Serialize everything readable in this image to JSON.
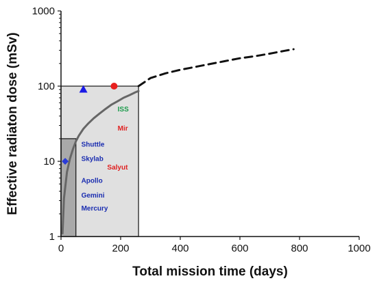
{
  "chart_data": {
    "type": "line",
    "title": "",
    "xlabel": "Total mission time (days)",
    "ylabel": "Effective radiaton dose (mSv)",
    "xlim": [
      0,
      1000
    ],
    "ylim": [
      1,
      1000
    ],
    "y_scale": "log",
    "x_ticks": [
      0,
      200,
      400,
      600,
      800,
      1000
    ],
    "x_tick_labels": [
      "0",
      "200",
      "400",
      "600",
      "800",
      "1000"
    ],
    "y_ticks": [
      1,
      10,
      100,
      1000
    ],
    "y_tick_labels": [
      "1",
      "10",
      "100",
      "1000"
    ],
    "grid": false,
    "legend": "none",
    "regions": [
      {
        "x": [
          0,
          260
        ],
        "y": [
          1,
          100
        ],
        "fill": "#e0e0e0"
      },
      {
        "x": [
          0,
          50
        ],
        "y": [
          1,
          20
        ],
        "fill": "#a9a9a9"
      }
    ],
    "series": [
      {
        "style": "solid",
        "color": "#666666",
        "x": [
          5,
          10,
          20,
          30,
          40,
          50,
          60,
          75,
          90,
          110,
          130,
          150,
          170,
          190,
          210,
          230,
          250,
          260
        ],
        "y": [
          1.1,
          3.2,
          7.2,
          10.8,
          14.5,
          18.5,
          22,
          27,
          31.5,
          37.5,
          43.5,
          50,
          57,
          63,
          70,
          76,
          83,
          86
        ]
      },
      {
        "style": "dashed",
        "color": "#111111",
        "x": [
          260,
          300,
          350,
          400,
          450,
          500,
          550,
          600,
          650,
          700,
          750,
          780
        ],
        "y": [
          100,
          128,
          148,
          165,
          180,
          197,
          215,
          235,
          250,
          270,
          295,
          310
        ]
      }
    ],
    "markers": [
      {
        "shape": "diamond",
        "color": "#2a3bd8",
        "x": 14,
        "y": 10
      },
      {
        "shape": "triangle",
        "color": "#1a1ae6",
        "x": 75,
        "y": 91
      },
      {
        "shape": "circle",
        "color": "#e8201e",
        "x": 178,
        "y": 100
      }
    ],
    "annotations": [
      {
        "text": "ISS",
        "color": "#1a9a4a",
        "x": 190,
        "y": 50
      },
      {
        "text": "Mir",
        "color": "#e02020",
        "x": 190,
        "y": 28
      },
      {
        "text": "Shuttle",
        "color": "#1a2db0",
        "x": 68,
        "y": 17
      },
      {
        "text": "Skylab",
        "color": "#1a2db0",
        "x": 68,
        "y": 11
      },
      {
        "text": "Salyut",
        "color": "#e02020",
        "x": 155,
        "y": 8.5
      },
      {
        "text": "Apollo",
        "color": "#1a2db0",
        "x": 68,
        "y": 5.6
      },
      {
        "text": "Gemini",
        "color": "#1a2db0",
        "x": 68,
        "y": 3.6
      },
      {
        "text": "Mercury",
        "color": "#1a2db0",
        "x": 68,
        "y": 2.4
      }
    ]
  }
}
